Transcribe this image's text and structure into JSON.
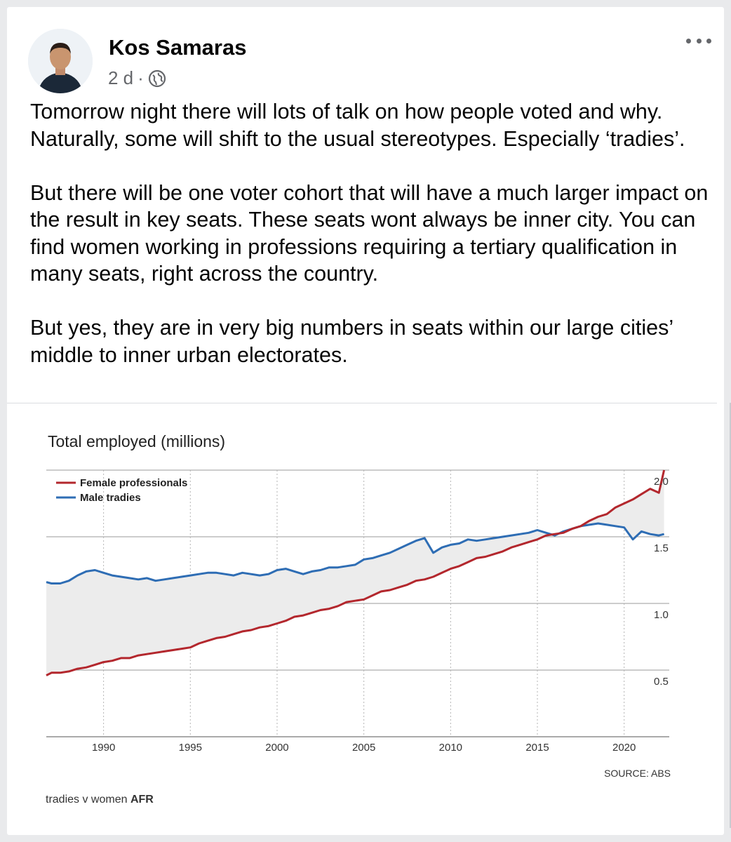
{
  "post": {
    "author": "Kos Samaras",
    "time": "2 d",
    "separator": "·",
    "privacy_icon": "globe-icon",
    "more_icon": "more-options-icon",
    "paragraphs": [
      "Tomorrow night there will lots of talk on how people voted and why. Naturally, some will shift to the usual stereotypes. Especially ‘tradies’.",
      "But there will be one voter cohort that will have a much larger impact on the result in key seats. These seats wont always be inner city. You can find women working in professions requiring a tertiary qualification in many seats, right across the country.",
      "But yes, they are in very big numbers in seats within our large cities’ middle to inner urban electorates."
    ]
  },
  "chart_data": {
    "type": "line",
    "title": "Total employed (millions)",
    "source": "SOURCE: ABS",
    "caption_prefix": "tradies v women ",
    "caption_brand": "AFR",
    "x_ticks": [
      "1990",
      "1995",
      "2000",
      "2005",
      "2010",
      "2015",
      "2020"
    ],
    "y_ticks": [
      "2.0",
      "1.5",
      "1.0",
      "0.5"
    ],
    "xlim": [
      1986.7,
      2022.6
    ],
    "ylim": [
      0.0,
      2.0
    ],
    "grid": true,
    "legend": "top-left",
    "colors": {
      "female": "#b3272d",
      "male": "#2e6db4",
      "fill": "#ececec"
    },
    "series": [
      {
        "name": "Female professionals",
        "x": [
          1986.7,
          1987.0,
          1987.5,
          1988.0,
          1988.5,
          1989.0,
          1989.5,
          1990.0,
          1990.5,
          1991.0,
          1991.5,
          1992.0,
          1992.5,
          1993.0,
          1993.5,
          1994.0,
          1994.5,
          1995.0,
          1995.5,
          1996.0,
          1996.5,
          1997.0,
          1997.5,
          1998.0,
          1998.5,
          1999.0,
          1999.5,
          2000.0,
          2000.5,
          2001.0,
          2001.5,
          2002.0,
          2002.5,
          2003.0,
          2003.5,
          2004.0,
          2004.5,
          2005.0,
          2005.5,
          2006.0,
          2006.5,
          2007.0,
          2007.5,
          2008.0,
          2008.5,
          2009.0,
          2009.5,
          2010.0,
          2010.5,
          2011.0,
          2011.5,
          2012.0,
          2012.5,
          2013.0,
          2013.5,
          2014.0,
          2014.5,
          2015.0,
          2015.5,
          2016.0,
          2016.5,
          2017.0,
          2017.5,
          2018.0,
          2018.5,
          2019.0,
          2019.5,
          2020.0,
          2020.5,
          2021.0,
          2021.5,
          2022.0,
          2022.3
        ],
        "values": [
          0.46,
          0.48,
          0.48,
          0.49,
          0.51,
          0.52,
          0.54,
          0.56,
          0.57,
          0.59,
          0.59,
          0.61,
          0.62,
          0.63,
          0.64,
          0.65,
          0.66,
          0.67,
          0.7,
          0.72,
          0.74,
          0.75,
          0.77,
          0.79,
          0.8,
          0.82,
          0.83,
          0.85,
          0.87,
          0.9,
          0.91,
          0.93,
          0.95,
          0.96,
          0.98,
          1.01,
          1.02,
          1.03,
          1.06,
          1.09,
          1.1,
          1.12,
          1.14,
          1.17,
          1.18,
          1.2,
          1.23,
          1.26,
          1.28,
          1.31,
          1.34,
          1.35,
          1.37,
          1.39,
          1.42,
          1.44,
          1.46,
          1.48,
          1.51,
          1.52,
          1.53,
          1.56,
          1.58,
          1.62,
          1.65,
          1.67,
          1.72,
          1.75,
          1.78,
          1.82,
          1.86,
          1.83,
          2.0
        ]
      },
      {
        "name": "Male tradies",
        "x": [
          1986.7,
          1987.0,
          1987.5,
          1988.0,
          1988.5,
          1989.0,
          1989.5,
          1990.0,
          1990.5,
          1991.0,
          1991.5,
          1992.0,
          1992.5,
          1993.0,
          1993.5,
          1994.0,
          1994.5,
          1995.0,
          1995.5,
          1996.0,
          1996.5,
          1997.0,
          1997.5,
          1998.0,
          1998.5,
          1999.0,
          1999.5,
          2000.0,
          2000.5,
          2001.0,
          2001.5,
          2002.0,
          2002.5,
          2003.0,
          2003.5,
          2004.0,
          2004.5,
          2005.0,
          2005.5,
          2006.0,
          2006.5,
          2007.0,
          2007.5,
          2008.0,
          2008.5,
          2009.0,
          2009.5,
          2010.0,
          2010.5,
          2011.0,
          2011.5,
          2012.0,
          2012.5,
          2013.0,
          2013.5,
          2014.0,
          2014.5,
          2015.0,
          2015.5,
          2016.0,
          2016.5,
          2017.0,
          2017.5,
          2018.0,
          2018.5,
          2019.0,
          2019.5,
          2020.0,
          2020.5,
          2021.0,
          2021.5,
          2022.0,
          2022.3
        ],
        "values": [
          1.16,
          1.15,
          1.15,
          1.17,
          1.21,
          1.24,
          1.25,
          1.23,
          1.21,
          1.2,
          1.19,
          1.18,
          1.19,
          1.17,
          1.18,
          1.19,
          1.2,
          1.21,
          1.22,
          1.23,
          1.23,
          1.22,
          1.21,
          1.23,
          1.22,
          1.21,
          1.22,
          1.25,
          1.26,
          1.24,
          1.22,
          1.24,
          1.25,
          1.27,
          1.27,
          1.28,
          1.29,
          1.33,
          1.34,
          1.36,
          1.38,
          1.41,
          1.44,
          1.47,
          1.49,
          1.38,
          1.42,
          1.44,
          1.45,
          1.48,
          1.47,
          1.48,
          1.49,
          1.5,
          1.51,
          1.52,
          1.53,
          1.55,
          1.53,
          1.51,
          1.54,
          1.56,
          1.58,
          1.59,
          1.6,
          1.59,
          1.58,
          1.57,
          1.48,
          1.54,
          1.52,
          1.51,
          1.52
        ]
      }
    ]
  }
}
